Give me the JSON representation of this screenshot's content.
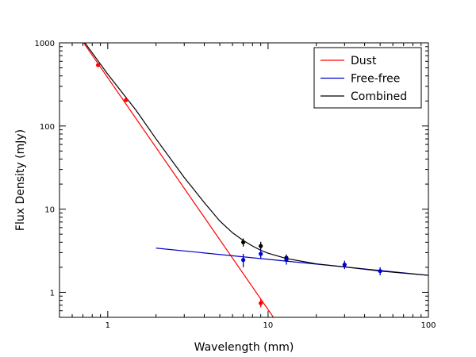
{
  "chart_data": {
    "type": "line",
    "title": "",
    "xlabel": "Wavelength (mm)",
    "ylabel": "Flux Density (mJy)",
    "xscale": "log",
    "yscale": "log",
    "xlim": [
      0.5,
      100
    ],
    "ylim": [
      0.5,
      1000
    ],
    "x_ticks": [
      {
        "value": 1,
        "label": "1"
      },
      {
        "value": 10,
        "label": "10"
      },
      {
        "value": 100,
        "label": "100"
      }
    ],
    "y_ticks": [
      {
        "value": 1,
        "label": "1"
      },
      {
        "value": 10,
        "label": "10"
      },
      {
        "value": 100,
        "label": "100"
      },
      {
        "value": 1000,
        "label": "1000"
      }
    ],
    "grid": false,
    "legend": {
      "position": "top-right"
    },
    "series": [
      {
        "name": "Dust",
        "color": "#ff0000",
        "kind": "line",
        "x": [
          0.7,
          10.8
        ],
        "y": [
          1030,
          0.5
        ]
      },
      {
        "name": "Free-free",
        "color": "#0000cc",
        "kind": "line",
        "x": [
          2,
          100
        ],
        "y": [
          3.4,
          1.6
        ]
      },
      {
        "name": "Combined",
        "color": "#000000",
        "kind": "line",
        "x": [
          0.72,
          1.0,
          1.5,
          2.0,
          3.0,
          4.0,
          5.0,
          6.0,
          7.0,
          8.0,
          9.0,
          10.0,
          13.0,
          20.0,
          30.0,
          50.0,
          70.0,
          100.0
        ],
        "y": [
          1000,
          420,
          155,
          70,
          24,
          12,
          7.2,
          5.2,
          4.2,
          3.6,
          3.2,
          2.95,
          2.55,
          2.2,
          2.02,
          1.8,
          1.7,
          1.6
        ]
      }
    ],
    "data_points": [
      {
        "group": "Dust",
        "color": "#ff0000",
        "x": 0.87,
        "y": 540,
        "err": 0
      },
      {
        "group": "Dust",
        "color": "#ff0000",
        "x": 1.3,
        "y": 205,
        "err": 0
      },
      {
        "group": "Dust",
        "color": "#ff0000",
        "x": 9.0,
        "y": 0.74,
        "err": 0.08
      },
      {
        "group": "Combined",
        "color": "#000000",
        "x": 7.0,
        "y": 4.0,
        "err": 0.45
      },
      {
        "group": "Combined",
        "color": "#000000",
        "x": 9.0,
        "y": 3.6,
        "err": 0.45
      },
      {
        "group": "Combined",
        "color": "#000000",
        "x": 13.0,
        "y": 2.6,
        "err": 0.25
      },
      {
        "group": "Free-free",
        "color": "#0000cc",
        "x": 7.0,
        "y": 2.45,
        "err": 0.45
      },
      {
        "group": "Free-free",
        "color": "#0000cc",
        "x": 9.0,
        "y": 2.9,
        "err": 0.35
      },
      {
        "group": "Free-free",
        "color": "#0000cc",
        "x": 13.0,
        "y": 2.45,
        "err": 0.3
      },
      {
        "group": "Free-free",
        "color": "#0000cc",
        "x": 30.0,
        "y": 2.15,
        "err": 0.25
      },
      {
        "group": "Free-free",
        "color": "#0000cc",
        "x": 50.0,
        "y": 1.8,
        "err": 0.2
      }
    ]
  }
}
